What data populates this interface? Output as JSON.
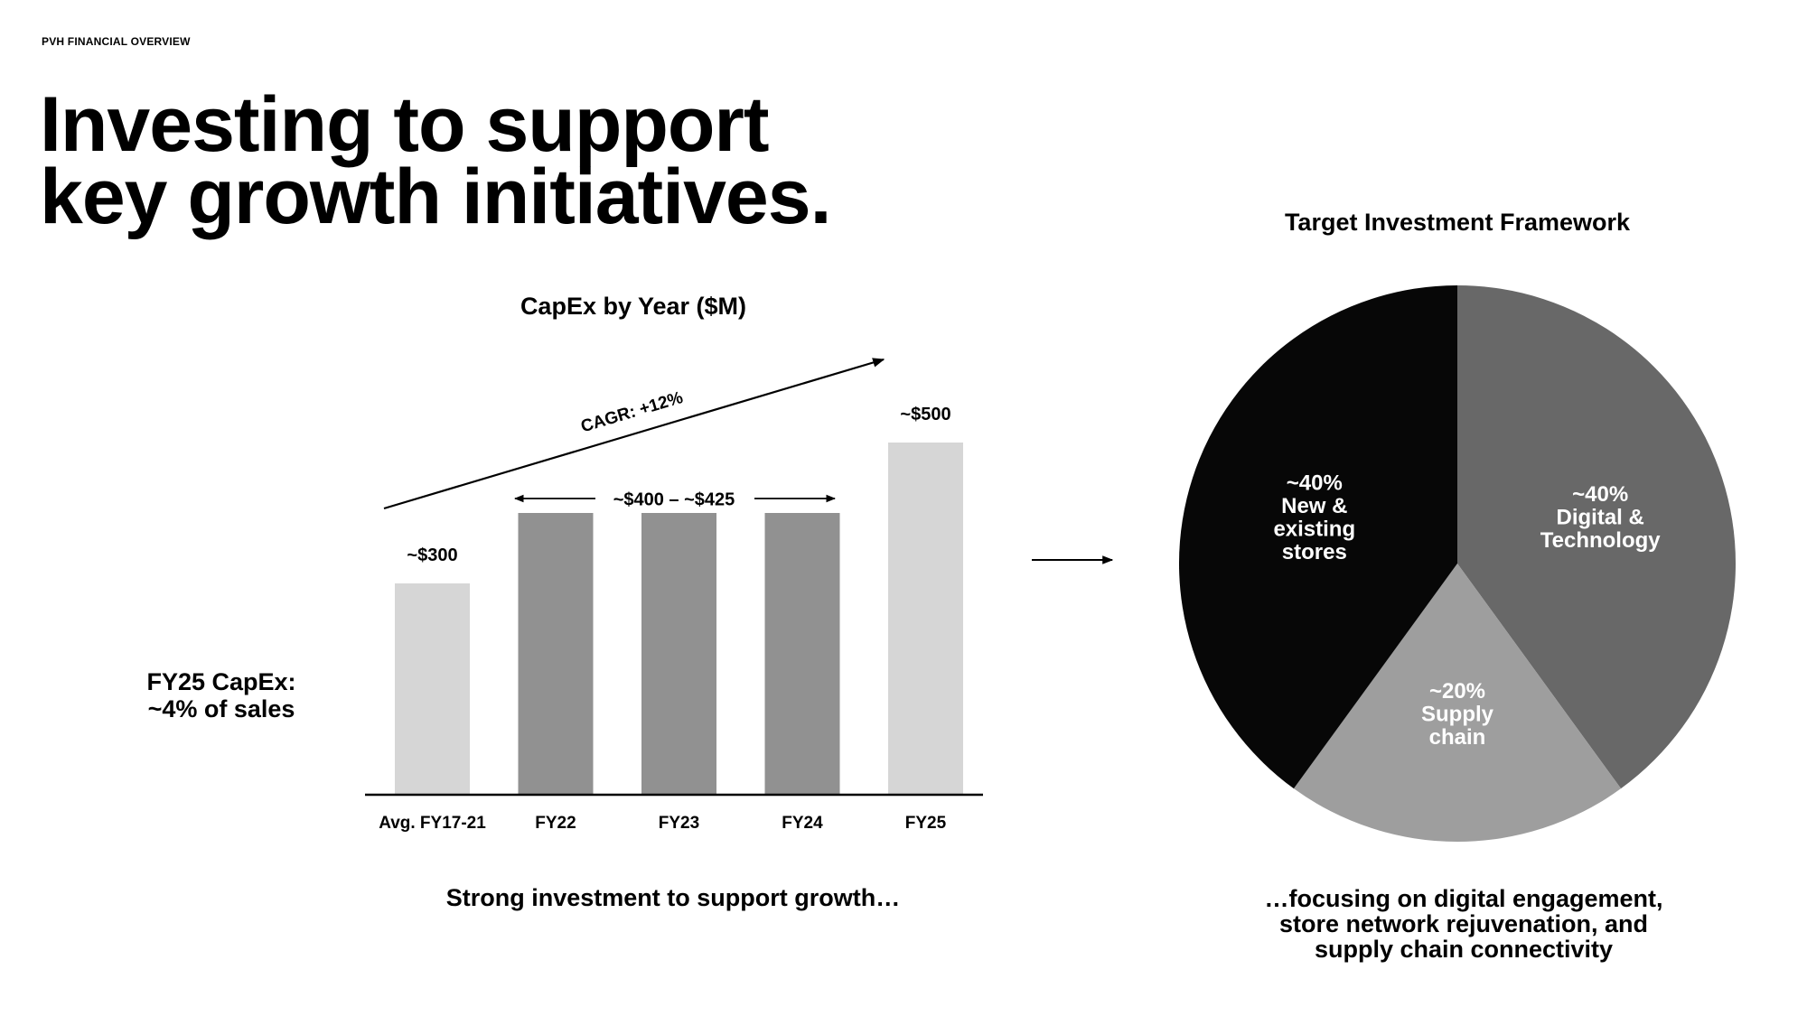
{
  "header": {
    "eyebrow": "PVH FINANCIAL OVERVIEW"
  },
  "headline": {
    "line1": "Investing to support",
    "line2": "key growth initiatives."
  },
  "callout": {
    "line1": "FY25 CapEx:",
    "line2": "~4% of sales"
  },
  "chart_data": [
    {
      "type": "bar",
      "title": "CapEx by Year ($M)",
      "categories": [
        "Avg. FY17-21",
        "FY22",
        "FY23",
        "FY24",
        "FY25"
      ],
      "values": [
        300,
        400,
        400,
        400,
        500
      ],
      "data_labels": [
        "~$300",
        "",
        "",
        "",
        "~$500"
      ],
      "range_label": "~$400 – ~$425",
      "trend_label": "CAGR: +12%",
      "bar_colors": [
        "#d6d6d6",
        "#919191",
        "#919191",
        "#919191",
        "#d6d6d6"
      ],
      "ylim": [
        0,
        600
      ],
      "grid": false
    },
    {
      "type": "pie",
      "title": "Target Investment Framework",
      "slices": [
        {
          "lines": [
            "~40%",
            "Digital &",
            "Technology"
          ],
          "value": 40,
          "color": "#686868"
        },
        {
          "lines": [
            "~20%",
            "Supply",
            "chain"
          ],
          "value": 20,
          "color": "#9e9e9e"
        },
        {
          "lines": [
            "~40%",
            "New &",
            "existing",
            "stores"
          ],
          "value": 40,
          "color": "#070707"
        }
      ]
    }
  ],
  "captions": {
    "left": "Strong investment to support growth…",
    "right": {
      "line1": "…focusing on digital engagement,",
      "line2": "store network rejuvenation, and",
      "line3": "supply chain connectivity"
    }
  }
}
